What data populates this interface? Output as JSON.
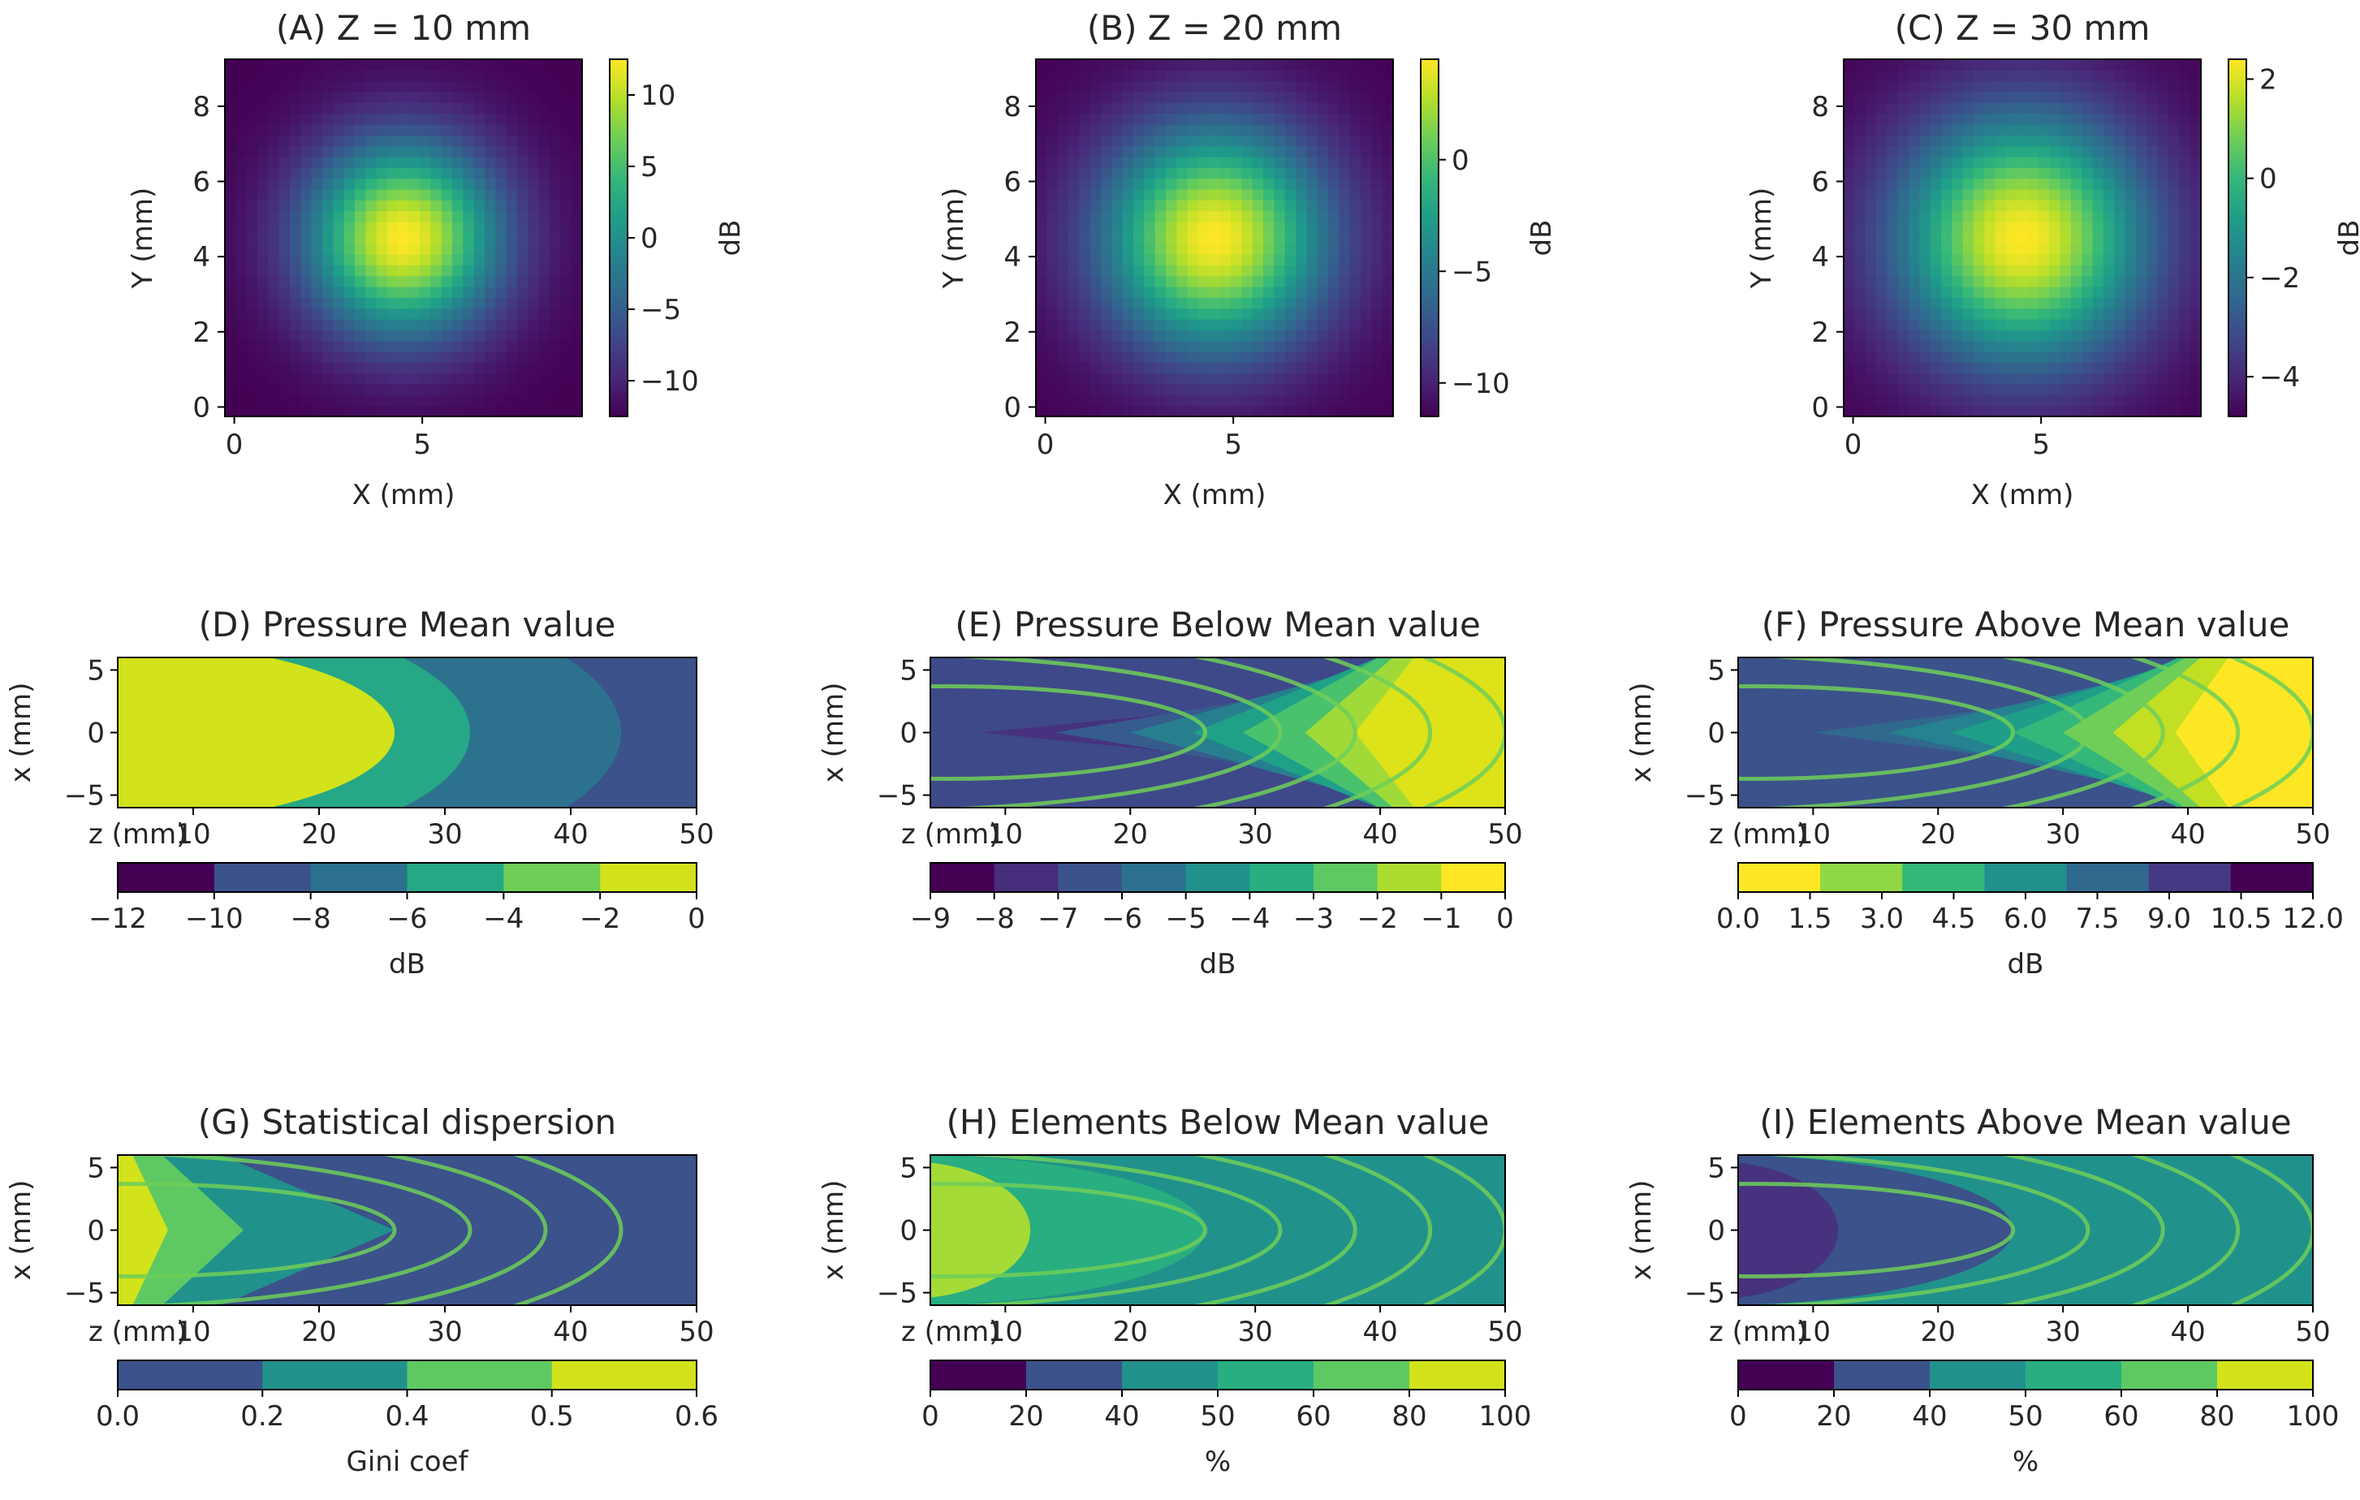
{
  "colors": {
    "viridis": [
      "#440154",
      "#482878",
      "#3e4989",
      "#31688e",
      "#26828e",
      "#1f9e89",
      "#35b779",
      "#6ece58",
      "#b5de2b",
      "#fde725"
    ],
    "contour_ring": "#6ece58"
  },
  "chart_data": [
    {
      "id": "A",
      "type": "heatmap",
      "title": "(A) Z = 10 mm",
      "xlabel": "X (mm)",
      "ylabel": "Y (mm)",
      "xlim": [
        -0.25,
        9.25
      ],
      "ylim": [
        -0.25,
        9.25
      ],
      "xticks": [
        "0",
        "5"
      ],
      "yticks": [
        "0",
        "2",
        "4",
        "6",
        "8"
      ],
      "center": [
        4.5,
        4.5
      ],
      "spread": 1.35,
      "value_range": [
        -12.5,
        12.5
      ],
      "colorbar": {
        "label": "dB",
        "ticks": [
          "−10",
          "−5",
          "0",
          "5",
          "10"
        ],
        "tick_values": [
          -10,
          -5,
          0,
          5,
          10
        ]
      }
    },
    {
      "id": "B",
      "type": "heatmap",
      "title": "(B) Z = 20 mm",
      "xlabel": "X (mm)",
      "ylabel": "Y (mm)",
      "xlim": [
        -0.25,
        9.25
      ],
      "ylim": [
        -0.25,
        9.25
      ],
      "xticks": [
        "0",
        "5"
      ],
      "yticks": [
        "0",
        "2",
        "4",
        "6",
        "8"
      ],
      "center": [
        4.5,
        4.5
      ],
      "spread": 1.0,
      "value_range": [
        -11.5,
        4.5
      ],
      "colorbar": {
        "label": "dB",
        "ticks": [
          "−10",
          "−5",
          "0"
        ],
        "tick_values": [
          -10,
          -5,
          0
        ]
      }
    },
    {
      "id": "C",
      "type": "heatmap",
      "title": "(C) Z = 30 mm",
      "xlabel": "X (mm)",
      "ylabel": "Y (mm)",
      "xlim": [
        -0.25,
        9.25
      ],
      "ylim": [
        -0.25,
        9.25
      ],
      "xticks": [
        "0",
        "5"
      ],
      "yticks": [
        "0",
        "2",
        "4",
        "6",
        "8"
      ],
      "center": [
        4.5,
        4.5
      ],
      "spread": 0.82,
      "value_range": [
        -4.8,
        2.4
      ],
      "colorbar": {
        "label": "dB",
        "ticks": [
          "−4",
          "−2",
          "0",
          "2"
        ],
        "tick_values": [
          -4,
          -2,
          0,
          2
        ]
      }
    },
    {
      "id": "D",
      "type": "heatmap",
      "title": "(D) Pressure Mean value",
      "xlabel": "z (mm)",
      "ylabel": "x (mm)",
      "xlim": [
        4,
        50
      ],
      "ylim": [
        -6,
        6
      ],
      "xticks": [
        "10",
        "20",
        "30",
        "40",
        "50"
      ],
      "yticks": [
        "−5",
        "0",
        "5"
      ],
      "zones": [
        {
          "cx": 2,
          "ax": 24,
          "ay": 7.4
        },
        {
          "cx": 2,
          "ax": 30,
          "ay": 10.5
        },
        {
          "cx": 2,
          "ax": 42,
          "ay": 13.5
        }
      ],
      "zone_colors": [
        "#d2e21b",
        "#6ece58",
        "#26a785",
        "#2c728e",
        "#3b528b"
      ],
      "contours": [],
      "colorbar": {
        "label": "dB",
        "ticks": [
          "−12",
          "−10",
          "−8",
          "−6",
          "−4",
          "−2",
          "0"
        ],
        "bins": [
          "#440154",
          "#3b528b",
          "#2c728e",
          "#26a785",
          "#6ece58",
          "#d2e21b"
        ]
      }
    },
    {
      "id": "E",
      "type": "heatmap",
      "title": "(E) Pressure Below Mean value",
      "xlabel": "z (mm)",
      "ylabel": "x (mm)",
      "xlim": [
        4,
        50
      ],
      "ylim": [
        -6,
        6
      ],
      "xticks": [
        "10",
        "20",
        "30",
        "40",
        "50"
      ],
      "yticks": [
        "−5",
        "0",
        "5"
      ],
      "background": "#3e4989",
      "bands": [
        {
          "zc": 8,
          "width": 0.11,
          "color": "#46327e"
        },
        {
          "zc": 14,
          "width": 0.16,
          "color": "#365c8d"
        },
        {
          "zc": 20,
          "width": 0.22,
          "color": "#277f8e"
        },
        {
          "zc": 25,
          "width": 0.27,
          "color": "#1fa187"
        },
        {
          "zc": 29,
          "width": 0.31,
          "color": "#4ac16d"
        },
        {
          "zc": 34,
          "width": 0.37,
          "color": "#a0da39"
        },
        {
          "zc": 38,
          "width": 0.42,
          "color": "#dde318"
        }
      ],
      "contours": [
        {
          "cx": 5.5,
          "ax": 20.5,
          "ay": 3.7
        },
        {
          "cx": -2,
          "ax": 34,
          "ay": 6.3
        },
        {
          "cx": -2,
          "ax": 40,
          "ay": 8.3
        },
        {
          "cx": -2,
          "ax": 46,
          "ay": 10.5
        },
        {
          "cx": -2,
          "ax": 52,
          "ay": 12.5
        }
      ],
      "colorbar": {
        "label": "dB",
        "ticks": [
          "−9",
          "−8",
          "−7",
          "−6",
          "−5",
          "−4",
          "−3",
          "−2",
          "−1",
          "0"
        ],
        "bins": [
          "#440154",
          "#472d7b",
          "#3b528b",
          "#2c728e",
          "#21918c",
          "#28ae80",
          "#5ec962",
          "#addc30",
          "#fde725"
        ]
      }
    },
    {
      "id": "F",
      "type": "heatmap",
      "title": "(F) Pressure Above Mean value",
      "xlabel": "z (mm)",
      "ylabel": "x (mm)",
      "xlim": [
        4,
        50
      ],
      "ylim": [
        -6,
        6
      ],
      "xticks": [
        "10",
        "20",
        "30",
        "40",
        "50"
      ],
      "yticks": [
        "−5",
        "0",
        "5"
      ],
      "background": "#3b528b",
      "bands": [
        {
          "zc": 10,
          "width": 0.14,
          "color": "#31688e"
        },
        {
          "zc": 16,
          "width": 0.2,
          "color": "#26828e"
        },
        {
          "zc": 21,
          "width": 0.24,
          "color": "#1f9e89"
        },
        {
          "zc": 26,
          "width": 0.29,
          "color": "#35b779"
        },
        {
          "zc": 30,
          "width": 0.33,
          "color": "#6ece58"
        },
        {
          "zc": 34,
          "width": 0.37,
          "color": "#c2df23"
        },
        {
          "zc": 39,
          "width": 0.43,
          "color": "#fde725"
        }
      ],
      "contours": [
        {
          "cx": 5.5,
          "ax": 20.5,
          "ay": 3.7
        },
        {
          "cx": -2,
          "ax": 34,
          "ay": 6.3
        },
        {
          "cx": -2,
          "ax": 40,
          "ay": 8.3
        },
        {
          "cx": -2,
          "ax": 46,
          "ay": 10.5
        },
        {
          "cx": -2,
          "ax": 52,
          "ay": 12.5
        }
      ],
      "colorbar": {
        "label": "dB",
        "ticks": [
          "0.0",
          "1.5",
          "3.0",
          "4.5",
          "6.0",
          "7.5",
          "9.0",
          "10.5",
          "12.0"
        ],
        "bins": [
          "#fde725",
          "#8fd744",
          "#35b779",
          "#21918c",
          "#31688e",
          "#443983",
          "#440154"
        ]
      }
    },
    {
      "id": "G",
      "type": "heatmap",
      "title": "(G) Statistical dispersion",
      "xlabel": "z (mm)",
      "ylabel": "x (mm)",
      "xlim": [
        4,
        50
      ],
      "ylim": [
        -6,
        6
      ],
      "xticks": [
        "10",
        "20",
        "30",
        "40",
        "50"
      ],
      "yticks": [
        "−5",
        "0",
        "5"
      ],
      "background": "#3b528b",
      "wedges": [
        {
          "zc": 26,
          "color": "#21918c"
        },
        {
          "zc": 14,
          "color": "#5ec962"
        },
        {
          "zc": 8,
          "color": "#d2e21b"
        }
      ],
      "contours": [
        {
          "cx": 5.5,
          "ax": 20.5,
          "ay": 3.7
        },
        {
          "cx": -2,
          "ax": 34,
          "ay": 6.3
        },
        {
          "cx": -2,
          "ax": 40,
          "ay": 8.3
        },
        {
          "cx": -2,
          "ax": 46,
          "ay": 10.5
        }
      ],
      "colorbar": {
        "label": "Gini coef",
        "ticks": [
          "0.0",
          "0.2",
          "0.4",
          "0.5",
          "0.6"
        ],
        "bins": [
          "#3b528b",
          "#21918c",
          "#5ec962",
          "#d2e21b"
        ]
      }
    },
    {
      "id": "H",
      "type": "heatmap",
      "title": "(H) Elements Below Mean value",
      "xlabel": "z (mm)",
      "ylabel": "x (mm)",
      "xlim": [
        4,
        50
      ],
      "ylim": [
        -6,
        6
      ],
      "xticks": [
        "10",
        "20",
        "30",
        "40",
        "50"
      ],
      "yticks": [
        "−5",
        "0",
        "5"
      ],
      "background": "#21918c",
      "zones": [
        {
          "cx": 2,
          "ax": 24,
          "ay": 6
        },
        {
          "cx": 2,
          "ax": 10,
          "ay": 5.5
        }
      ],
      "zone_colors": [
        "#28ae80",
        "#a5db36"
      ],
      "contours": [
        {
          "cx": 5.5,
          "ax": 20.5,
          "ay": 3.7
        },
        {
          "cx": -2,
          "ax": 34,
          "ay": 6.3
        },
        {
          "cx": -2,
          "ax": 40,
          "ay": 8.3
        },
        {
          "cx": -2,
          "ax": 46,
          "ay": 10.5
        },
        {
          "cx": -2,
          "ax": 52,
          "ay": 12.5
        }
      ],
      "colorbar": {
        "label": "%",
        "ticks": [
          "0",
          "20",
          "40",
          "50",
          "60",
          "80",
          "100"
        ],
        "bins": [
          "#440154",
          "#3b528b",
          "#21918c",
          "#28ae80",
          "#5ec962",
          "#d2e21b"
        ]
      }
    },
    {
      "id": "I",
      "type": "heatmap",
      "title": "(I) Elements Above Mean value",
      "xlabel": "z (mm)",
      "ylabel": "x (mm)",
      "xlim": [
        4,
        50
      ],
      "ylim": [
        -6,
        6
      ],
      "xticks": [
        "10",
        "20",
        "30",
        "40",
        "50"
      ],
      "yticks": [
        "−5",
        "0",
        "5"
      ],
      "background": "#21918c",
      "zones": [
        {
          "cx": 2,
          "ax": 24,
          "ay": 6
        },
        {
          "cx": 2,
          "ax": 10,
          "ay": 5.5
        }
      ],
      "zone_colors": [
        "#3b528b",
        "#46327e"
      ],
      "contours": [
        {
          "cx": 5.5,
          "ax": 20.5,
          "ay": 3.7
        },
        {
          "cx": -2,
          "ax": 34,
          "ay": 6.3
        },
        {
          "cx": -2,
          "ax": 40,
          "ay": 8.3
        },
        {
          "cx": -2,
          "ax": 46,
          "ay": 10.5
        },
        {
          "cx": -2,
          "ax": 52,
          "ay": 12.5
        }
      ],
      "colorbar": {
        "label": "%",
        "ticks": [
          "0",
          "20",
          "40",
          "50",
          "60",
          "80",
          "100"
        ],
        "bins": [
          "#440154",
          "#3b528b",
          "#21918c",
          "#28ae80",
          "#5ec962",
          "#d2e21b"
        ]
      }
    }
  ]
}
